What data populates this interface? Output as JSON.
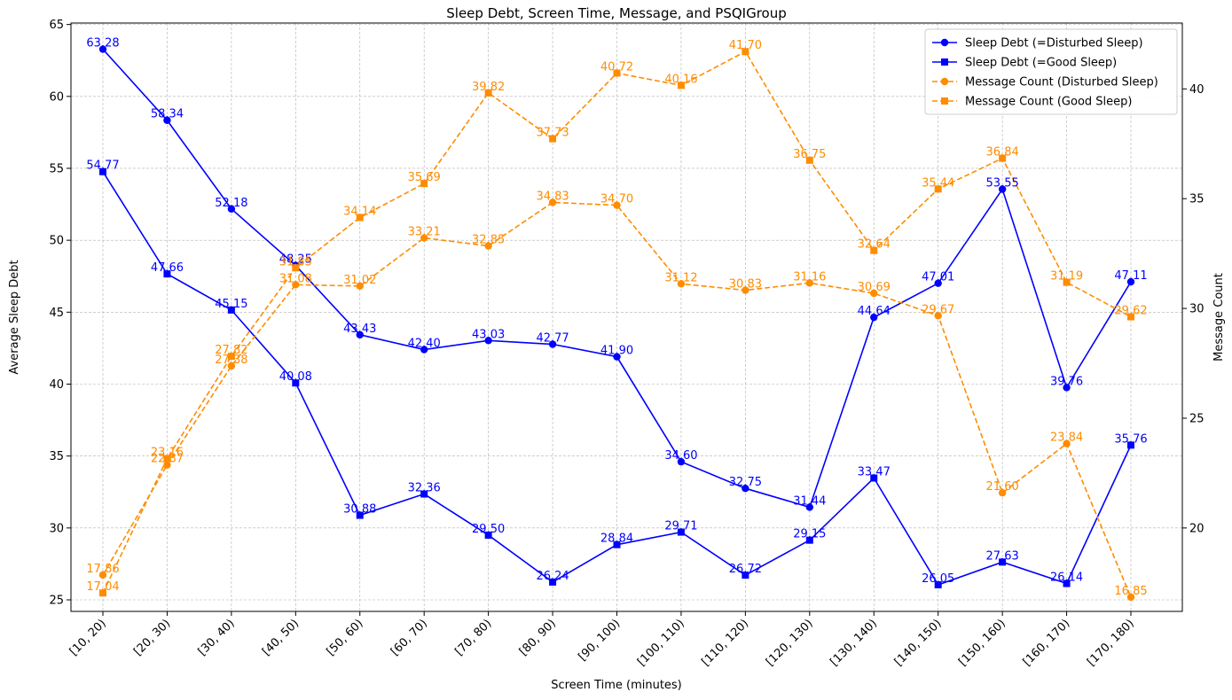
{
  "chart_data": {
    "type": "line",
    "title": "Sleep Debt, Screen Time, Message, and PSQIGroup",
    "xlabel": "Screen Time (minutes)",
    "ylabel": "Average Sleep Debt",
    "y2label": "Message Count",
    "categories": [
      "[10, 20)",
      "[20, 30)",
      "[30, 40)",
      "[40, 50)",
      "[50, 60)",
      "[60, 70)",
      "[70, 80)",
      "[80, 90)",
      "[90, 100)",
      "[100, 110)",
      "[110, 120)",
      "[120, 130)",
      "[130, 140)",
      "[140, 150)",
      "[150, 160)",
      "[160, 170)",
      "[170, 180)"
    ],
    "ylim": [
      24.2,
      65.1
    ],
    "y2lim": [
      16.2,
      43.0
    ],
    "yticks": [
      25,
      30,
      35,
      40,
      45,
      50,
      55,
      60,
      65
    ],
    "y2ticks": [
      20,
      25,
      30,
      35,
      40
    ],
    "grid": true,
    "legend_position": "top-right",
    "series": [
      {
        "name": "Sleep Debt (=Disturbed Sleep)",
        "axis": "left",
        "color": "#0000ff",
        "style": "solid",
        "marker": "circle",
        "values": [
          63.28,
          58.34,
          52.18,
          48.25,
          43.43,
          42.4,
          43.03,
          42.77,
          41.9,
          34.6,
          32.75,
          31.44,
          44.64,
          47.01,
          53.55,
          39.76,
          47.11
        ],
        "labels": [
          "63.28",
          "58.34",
          "52.18",
          "48.25",
          "43.43",
          "42.40",
          "43.03",
          "42.77",
          "41.90",
          "34.60",
          "32.75",
          "31.44",
          "44.64",
          "47.01",
          "53.55",
          "39.76",
          "47.11"
        ]
      },
      {
        "name": "Sleep Debt (=Good Sleep)",
        "axis": "left",
        "color": "#0000ff",
        "style": "solid",
        "marker": "square",
        "values": [
          54.77,
          47.66,
          45.15,
          40.08,
          30.88,
          32.36,
          29.5,
          26.24,
          28.84,
          29.71,
          26.72,
          29.15,
          33.47,
          26.05,
          27.63,
          26.14,
          35.76
        ],
        "labels": [
          "54.77",
          "47.66",
          "45.15",
          "40.08",
          "30.88",
          "32.36",
          "29.50",
          "26.24",
          "28.84",
          "29.71",
          "26.72",
          "29.15",
          "33.47",
          "26.05",
          "27.63",
          "26.14",
          "35.76"
        ]
      },
      {
        "name": "Message Count (Disturbed Sleep)",
        "axis": "right",
        "color": "#ff8c00",
        "style": "dashed",
        "marker": "circle",
        "values": [
          17.86,
          22.87,
          27.38,
          31.08,
          31.02,
          33.21,
          32.85,
          34.83,
          34.7,
          31.12,
          30.83,
          31.16,
          30.69,
          29.67,
          21.6,
          23.84,
          16.85
        ],
        "labels": [
          "17.86",
          "22.87",
          "27.38",
          "31.08",
          "31.02",
          "33.21",
          "32.85",
          "34.83",
          "34.70",
          "31.12",
          "30.83",
          "31.16",
          "30.69",
          "29.67",
          "21.60",
          "23.84",
          "16.85"
        ]
      },
      {
        "name": "Message Count (Good Sleep)",
        "axis": "right",
        "color": "#ff8c00",
        "style": "dashed",
        "marker": "square",
        "values": [
          17.04,
          23.16,
          27.82,
          31.85,
          34.14,
          35.69,
          39.82,
          37.73,
          40.72,
          40.16,
          41.7,
          36.75,
          32.64,
          35.44,
          36.84,
          31.19,
          29.62
        ],
        "labels": [
          "17.04",
          "23.16",
          "27.82",
          "31.85",
          "34.14",
          "35.69",
          "39.82",
          "37.73",
          "40.72",
          "40.16",
          "41.70",
          "36.75",
          "32.64",
          "35.44",
          "36.84",
          "31.19",
          "29.62"
        ]
      }
    ]
  }
}
